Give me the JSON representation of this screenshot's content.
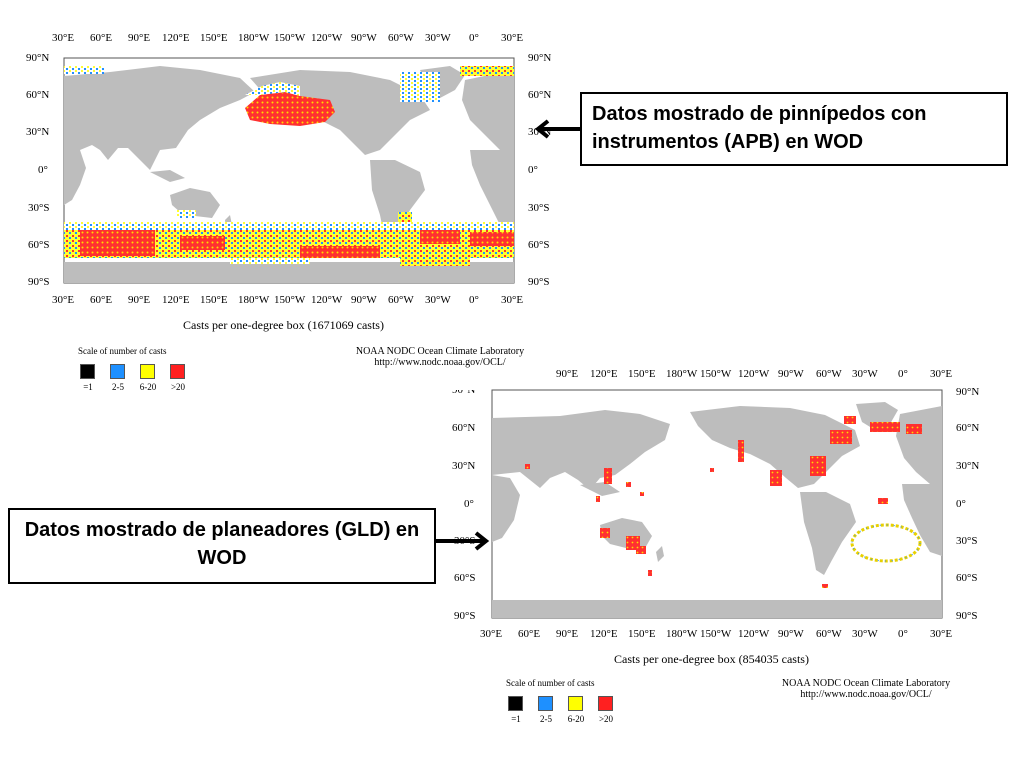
{
  "panels": [
    {
      "id": "apb",
      "lon_labels_top": [
        "30°E",
        "60°E",
        "90°E",
        "120°E",
        "150°E",
        "180°W",
        "150°W",
        "120°W",
        "90°W",
        "60°W",
        "30°W",
        "0°",
        "30°E"
      ],
      "lon_labels_bottom": [
        "30°E",
        "60°E",
        "90°E",
        "120°E",
        "150°E",
        "180°W",
        "150°W",
        "120°W",
        "90°W",
        "60°W",
        "30°W",
        "0°",
        "30°E"
      ],
      "lat_labels": [
        "90°N",
        "60°N",
        "30°N",
        "0°",
        "30°S",
        "60°S",
        "90°S"
      ],
      "caption": "Casts per one-degree box (1671069 casts)",
      "credit_line1": "NOAA NODC Ocean Climate Laboratory",
      "credit_line2": "http://www.nodc.noaa.gov/OCL/",
      "scale_title": "Scale of number of casts",
      "scale": [
        {
          "label": "=1",
          "color": "#000000"
        },
        {
          "label": "2-5",
          "color": "#1e90ff"
        },
        {
          "label": "6-20",
          "color": "#ffff00"
        },
        {
          "label": ">20",
          "color": "#ff2020"
        }
      ]
    },
    {
      "id": "gld",
      "lon_labels_top": [
        "90°E",
        "120°E",
        "150°E",
        "180°W",
        "150°W",
        "120°W",
        "90°W",
        "60°W",
        "30°W",
        "0°",
        "30°E"
      ],
      "lon_labels_bottom": [
        "30°E",
        "60°E",
        "90°E",
        "120°E",
        "150°E",
        "180°W",
        "150°W",
        "120°W",
        "90°W",
        "60°W",
        "30°W",
        "0°",
        "30°E"
      ],
      "lat_labels": [
        "90°N",
        "60°N",
        "30°N",
        "0°",
        "30°S",
        "60°S",
        "90°S"
      ],
      "caption": "Casts per one-degree box (854035 casts)",
      "credit_line1": "NOAA NODC Ocean Climate Laboratory",
      "credit_line2": "http://www.nodc.noaa.gov/OCL/",
      "scale_title": "Scale of number of casts",
      "scale": [
        {
          "label": "=1",
          "color": "#000000"
        },
        {
          "label": "2-5",
          "color": "#1e90ff"
        },
        {
          "label": "6-20",
          "color": "#ffff00"
        },
        {
          "label": ">20",
          "color": "#ff2020"
        }
      ]
    }
  ],
  "callouts": {
    "apb": "Datos mostrado de pinnípedos con instrumentos (APB)  en WOD",
    "gld": "Datos mostrado de planeadores (GLD) en WOD"
  },
  "colors": {
    "land": "#bdbdbd",
    "ocean": "#ffffff"
  }
}
